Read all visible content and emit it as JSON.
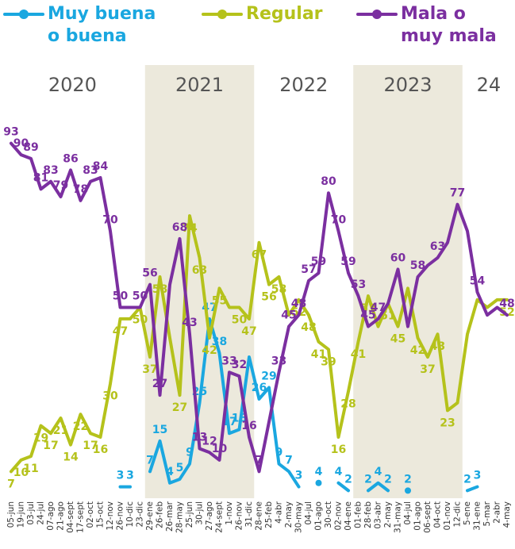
{
  "chart_data": {
    "type": "line",
    "years": [
      {
        "label": "2020",
        "start": 0,
        "end": 13,
        "shaded": false
      },
      {
        "label": "2021",
        "start": 14,
        "end": 24,
        "shaded": true
      },
      {
        "label": "2022",
        "start": 25,
        "end": 34,
        "shaded": false
      },
      {
        "label": "2023",
        "start": 35,
        "end": 45,
        "shaded": true
      },
      {
        "label": "24",
        "start": 46,
        "end": 50,
        "shaded": false
      }
    ],
    "categories": [
      "05-jun",
      "19-jun",
      "03-jul",
      "24-jul",
      "07-ago",
      "21-ago",
      "04-sept",
      "17-sept",
      "02-oct",
      "15-oct",
      "12-nov",
      "26-nov",
      "10-dic",
      "23-dic",
      "29-ene",
      "26-feb",
      "26-mar",
      "28-may",
      "25-jun",
      "30-jul",
      "27-ago",
      "24-sept",
      "1-nov",
      "26-nov",
      "31-dic",
      "28-ene",
      "25-feb",
      "4-abr",
      "2-may",
      "30-may",
      "04-jul",
      "01-ago",
      "30-oct",
      "02-nov",
      "04-ene",
      "01-feb",
      "28-feb",
      "03-abr",
      "2-may",
      "31-may",
      "04-jul",
      "01-ago",
      "06-sept",
      "04-oct",
      "01-nov",
      "12-dic",
      "5-ene",
      "31-ene",
      "5-mar",
      "2-abr",
      "4-may"
    ],
    "ylim": [
      0,
      100
    ],
    "series": [
      {
        "name": "Muy buena o buena",
        "color": "#1aa7e0",
        "values": [
          null,
          null,
          null,
          null,
          null,
          null,
          null,
          null,
          null,
          null,
          null,
          3,
          3,
          null,
          7,
          15,
          4,
          5,
          9,
          25,
          47,
          38,
          17,
          18,
          37,
          26,
          29,
          9,
          7,
          3,
          null,
          4,
          null,
          4,
          2,
          null,
          2,
          4,
          2,
          null,
          2,
          null,
          null,
          null,
          null,
          null,
          2,
          3,
          null,
          null,
          null
        ],
        "value_labels": [
          null,
          null,
          null,
          null,
          null,
          null,
          null,
          null,
          null,
          null,
          null,
          "3",
          "3",
          null,
          "7",
          "15",
          "4",
          "5",
          "9",
          "25",
          "47",
          "38",
          "17",
          "18",
          null,
          "26",
          "29",
          "9",
          "7",
          "3",
          null,
          "4",
          null,
          "4",
          "2",
          null,
          "2",
          "4",
          "2",
          null,
          "2",
          null,
          null,
          null,
          null,
          null,
          "2",
          "3",
          null,
          null,
          null
        ]
      },
      {
        "name": "Regular",
        "color": "#b5c21b",
        "values": [
          7,
          10,
          11,
          19,
          17,
          21,
          14,
          22,
          17,
          16,
          30,
          47,
          47,
          50,
          37,
          58,
          42,
          27,
          74,
          63,
          42,
          55,
          50,
          50,
          47,
          67,
          56,
          58,
          48,
          52,
          48,
          41,
          39,
          16,
          28,
          41,
          53,
          45,
          51,
          45,
          55,
          42,
          37,
          43,
          23,
          25,
          43,
          52,
          50,
          52,
          52
        ],
        "value_labels": [
          "7",
          "10",
          "11",
          "19",
          "17",
          "21",
          "14",
          "22",
          "17",
          "16",
          "30",
          "47",
          null,
          "50",
          "37",
          "58",
          null,
          "27",
          "74",
          "63",
          "42",
          "55",
          null,
          "50",
          "47",
          "67",
          "56",
          "58",
          null,
          "52",
          "48",
          "41",
          "39",
          "16",
          "28",
          "41",
          "53",
          null,
          "51",
          "45",
          null,
          "42",
          "37",
          "43",
          "23",
          null,
          null,
          null,
          null,
          null,
          "52"
        ]
      },
      {
        "name": "Mala o muy mala",
        "color": "#7b2fa0",
        "values": [
          93,
          90,
          89,
          81,
          83,
          79,
          86,
          78,
          83,
          84,
          70,
          50,
          50,
          50,
          56,
          27,
          56,
          68,
          43,
          13,
          12,
          10,
          33,
          32,
          16,
          7,
          20,
          33,
          45,
          48,
          57,
          59,
          80,
          70,
          59,
          53,
          45,
          47,
          51,
          60,
          45,
          58,
          61,
          63,
          67,
          77,
          70,
          54,
          48,
          50,
          48
        ],
        "value_labels": [
          "93",
          "90",
          "89",
          "81",
          "83",
          "79",
          "86",
          "78",
          "83",
          "84",
          "70",
          "50",
          null,
          "50",
          "56",
          "27",
          null,
          "68",
          "43",
          "13",
          "12",
          "10",
          "33",
          "32",
          "16",
          "7",
          null,
          "33",
          "45",
          "48",
          "57",
          "59",
          "80",
          "70",
          "59",
          "53",
          "45",
          "47",
          null,
          "60",
          null,
          "58",
          null,
          "63",
          null,
          "77",
          null,
          "54",
          null,
          null,
          "48"
        ]
      }
    ]
  }
}
